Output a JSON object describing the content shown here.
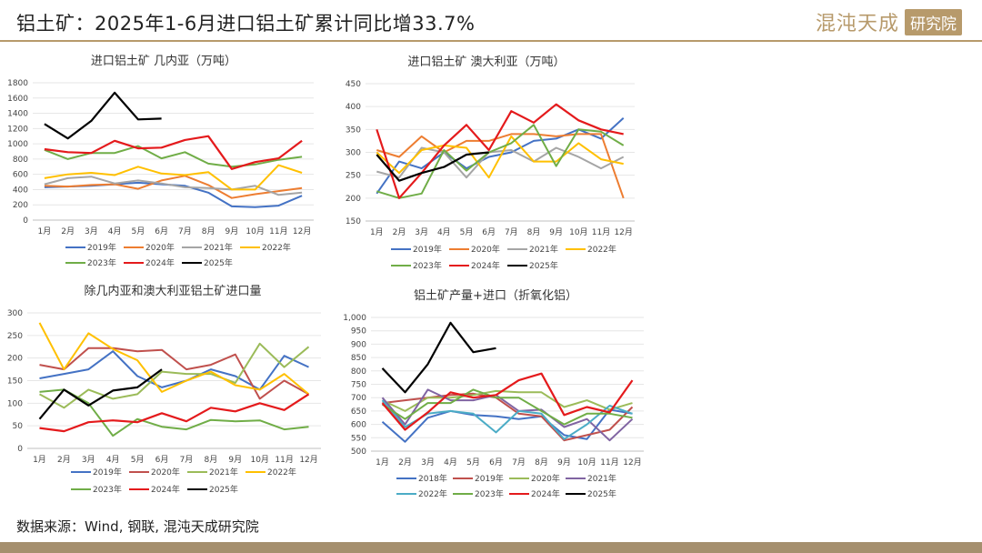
{
  "header": {
    "title": "铝土矿：2025年1-6月进口铝土矿累计同比增33.7%",
    "logo_text": "混沌天成",
    "logo_box": "研究院"
  },
  "footer": {
    "source": "数据来源：Wind, 钢联, 混沌天成研究院"
  },
  "colors": {
    "accent": "#b79a6b",
    "bar": "#a58f6e"
  },
  "chart_data": [
    {
      "type": "line",
      "title": "进口铝土矿 几内亚（万吨）",
      "categories": [
        "1月",
        "2月",
        "3月",
        "4月",
        "5月",
        "6月",
        "7月",
        "8月",
        "9月",
        "10月",
        "11月",
        "12月"
      ],
      "ylim": [
        0,
        1800
      ],
      "yticks": [
        "0",
        "200",
        "400",
        "600",
        "800",
        "1000",
        "1200",
        "1400",
        "1600",
        "1800"
      ],
      "series": [
        {
          "name": "2019年",
          "color": "#4472c4",
          "values": [
            430,
            440,
            450,
            470,
            490,
            470,
            450,
            360,
            180,
            170,
            190,
            320
          ]
        },
        {
          "name": "2020年",
          "color": "#ed7d31",
          "values": [
            450,
            440,
            460,
            470,
            410,
            520,
            580,
            460,
            290,
            340,
            380,
            420
          ]
        },
        {
          "name": "2021年",
          "color": "#a5a5a5",
          "values": [
            470,
            550,
            570,
            480,
            520,
            480,
            430,
            420,
            400,
            450,
            330,
            360
          ]
        },
        {
          "name": "2022年",
          "color": "#ffc000",
          "values": [
            550,
            600,
            620,
            590,
            700,
            610,
            590,
            630,
            400,
            400,
            720,
            620
          ]
        },
        {
          "name": "2023年",
          "color": "#70ad47",
          "values": [
            920,
            800,
            880,
            880,
            970,
            810,
            890,
            740,
            700,
            730,
            790,
            830
          ]
        },
        {
          "name": "2024年",
          "color": "#e41a1c",
          "values": [
            930,
            890,
            880,
            1040,
            940,
            950,
            1050,
            1100,
            670,
            760,
            810,
            1040
          ]
        },
        {
          "name": "2025年",
          "color": "#000000",
          "values": [
            1260,
            1070,
            1300,
            1670,
            1320,
            1330,
            null,
            null,
            null,
            null,
            null,
            null
          ]
        }
      ]
    },
    {
      "type": "line",
      "title": "进口铝土矿 澳大利亚（万吨）",
      "categories": [
        "1月",
        "2月",
        "3月",
        "4月",
        "5月",
        "6月",
        "7月",
        "8月",
        "9月",
        "10月",
        "11月",
        "12月"
      ],
      "ylim": [
        150,
        450
      ],
      "yticks": [
        "150",
        "200",
        "250",
        "300",
        "350",
        "400",
        "450"
      ],
      "series": [
        {
          "name": "2019年",
          "color": "#4472c4",
          "values": [
            210,
            280,
            265,
            300,
            265,
            290,
            300,
            325,
            330,
            350,
            330,
            375
          ]
        },
        {
          "name": "2020年",
          "color": "#ed7d31",
          "values": [
            305,
            290,
            335,
            300,
            325,
            325,
            340,
            340,
            335,
            340,
            340,
            200
          ]
        },
        {
          "name": "2021年",
          "color": "#a5a5a5",
          "values": [
            258,
            245,
            310,
            300,
            245,
            300,
            305,
            280,
            310,
            290,
            265,
            290
          ]
        },
        {
          "name": "2022年",
          "color": "#ffc000",
          "values": [
            300,
            255,
            305,
            315,
            310,
            245,
            335,
            280,
            280,
            320,
            285,
            275
          ]
        },
        {
          "name": "2023年",
          "color": "#70ad47",
          "values": [
            215,
            200,
            210,
            305,
            260,
            300,
            320,
            360,
            270,
            350,
            345,
            315
          ]
        },
        {
          "name": "2024年",
          "color": "#e41a1c",
          "values": [
            350,
            200,
            255,
            315,
            360,
            305,
            390,
            365,
            405,
            370,
            350,
            340
          ]
        },
        {
          "name": "2025年",
          "color": "#000000",
          "values": [
            295,
            238,
            255,
            268,
            295,
            300,
            null,
            null,
            null,
            null,
            null,
            null
          ]
        }
      ]
    },
    {
      "type": "line",
      "title": "除几内亚和澳大利亚铝土矿进口量",
      "categories": [
        "1月",
        "2月",
        "3月",
        "4月",
        "5月",
        "6月",
        "7月",
        "8月",
        "9月",
        "10月",
        "11月",
        "12月"
      ],
      "ylim": [
        0,
        300
      ],
      "yticks": [
        "0",
        "50",
        "100",
        "150",
        "200",
        "250",
        "300"
      ],
      "series": [
        {
          "name": "2019年",
          "color": "#4472c4",
          "values": [
            155,
            165,
            175,
            215,
            160,
            135,
            150,
            175,
            160,
            130,
            205,
            180
          ]
        },
        {
          "name": "2020年",
          "color": "#c0504d",
          "values": [
            185,
            175,
            222,
            222,
            215,
            218,
            175,
            185,
            208,
            110,
            150,
            120
          ]
        },
        {
          "name": "2021年",
          "color": "#9bbb59",
          "values": [
            120,
            90,
            130,
            110,
            120,
            170,
            165,
            165,
            145,
            232,
            180,
            225
          ]
        },
        {
          "name": "2022年",
          "color": "#ffc000",
          "values": [
            278,
            175,
            255,
            220,
            195,
            125,
            150,
            170,
            140,
            130,
            165,
            120
          ]
        },
        {
          "name": "2023年",
          "color": "#70ad47",
          "values": [
            125,
            130,
            100,
            28,
            65,
            48,
            42,
            63,
            60,
            62,
            42,
            48
          ]
        },
        {
          "name": "2024年",
          "color": "#e41a1c",
          "values": [
            45,
            38,
            58,
            62,
            58,
            78,
            60,
            90,
            82,
            100,
            85,
            120
          ]
        },
        {
          "name": "2025年",
          "color": "#000000",
          "values": [
            65,
            130,
            95,
            128,
            135,
            175,
            null,
            null,
            null,
            null,
            null,
            null
          ]
        }
      ]
    },
    {
      "type": "line",
      "title": "铝土矿产量+进口（折氧化铝）",
      "categories": [
        "1月",
        "2月",
        "3月",
        "4月",
        "5月",
        "6月",
        "7月",
        "8月",
        "9月",
        "10月",
        "11月",
        "12月"
      ],
      "ylim": [
        500,
        1000
      ],
      "yticks": [
        "500",
        "550",
        "600",
        "650",
        "700",
        "750",
        "800",
        "850",
        "900",
        "950",
        "1,000"
      ],
      "series": [
        {
          "name": "2018年",
          "color": "#4472c4",
          "values": [
            610,
            535,
            625,
            650,
            635,
            630,
            620,
            630,
            560,
            545,
            655,
            640
          ]
        },
        {
          "name": "2019年",
          "color": "#c0504d",
          "values": [
            680,
            690,
            700,
            710,
            715,
            700,
            640,
            630,
            540,
            560,
            580,
            665
          ]
        },
        {
          "name": "2020年",
          "color": "#9bbb59",
          "values": [
            690,
            650,
            700,
            700,
            710,
            725,
            720,
            720,
            665,
            690,
            655,
            680
          ]
        },
        {
          "name": "2021年",
          "color": "#8064a2",
          "values": [
            700,
            600,
            730,
            690,
            690,
            710,
            650,
            655,
            590,
            620,
            540,
            620
          ]
        },
        {
          "name": "2022年",
          "color": "#4bacc6",
          "values": [
            690,
            590,
            640,
            650,
            640,
            570,
            650,
            640,
            545,
            600,
            670,
            640
          ]
        },
        {
          "name": "2023年",
          "color": "#70ad47",
          "values": [
            675,
            620,
            680,
            680,
            730,
            700,
            700,
            650,
            600,
            640,
            640,
            625
          ]
        },
        {
          "name": "2024年",
          "color": "#e41a1c",
          "values": [
            680,
            580,
            645,
            720,
            700,
            710,
            765,
            790,
            635,
            665,
            645,
            765
          ]
        },
        {
          "name": "2025年",
          "color": "#000000",
          "values": [
            810,
            720,
            825,
            980,
            870,
            885,
            null,
            null,
            null,
            null,
            null,
            null
          ]
        }
      ]
    }
  ]
}
